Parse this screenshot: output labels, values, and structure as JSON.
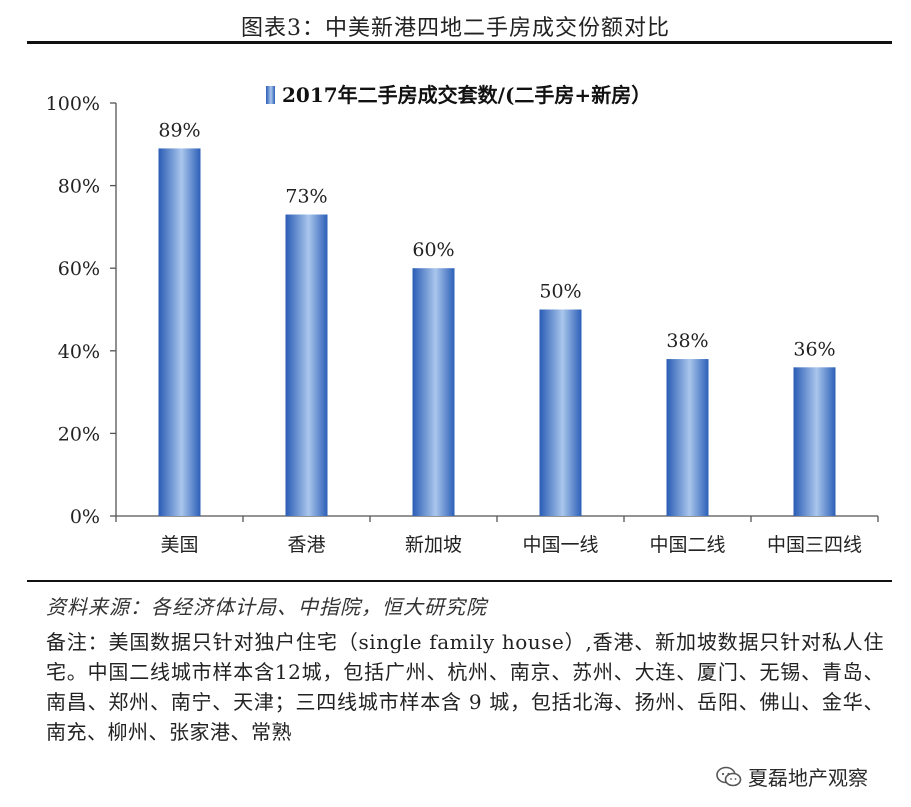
{
  "figure_title": "图表3：中美新港四地二手房成交份额对比",
  "chart_data": {
    "type": "bar",
    "legend": "2017年二手房成交套数/(二手房+新房）",
    "legend_position": "top-center",
    "categories": [
      "美国",
      "香港",
      "新加坡",
      "中国一线",
      "中国二线",
      "中国三四线"
    ],
    "series": [
      {
        "name": "2017年二手房成交套数/(二手房+新房）",
        "values": [
          89,
          73,
          60,
          50,
          38,
          36
        ]
      }
    ],
    "data_labels": [
      "89%",
      "73%",
      "60%",
      "50%",
      "38%",
      "36%"
    ],
    "ylim": [
      0,
      100
    ],
    "yticks": [
      "0%",
      "20%",
      "40%",
      "60%",
      "80%",
      "100%"
    ],
    "grid": false,
    "bar_color": "#3b6fc4"
  },
  "source": "资料来源：各经济体计局、中指院，恒大研究院",
  "note": "备注：美国数据只针对独户住宅（single family house）,香港、新加坡数据只针对私人住宅。中国二线城市样本含12城，包括广州、杭州、南京、苏州、大连、厦门、无锡、青岛、南昌、郑州、南宁、天津；三四线城市样本含 9 城，包括北海、扬州、岳阳、佛山、金华、南充、柳州、张家港、常熟",
  "watermark": {
    "text": "夏磊地产观察",
    "icon": "wechat-icon"
  }
}
